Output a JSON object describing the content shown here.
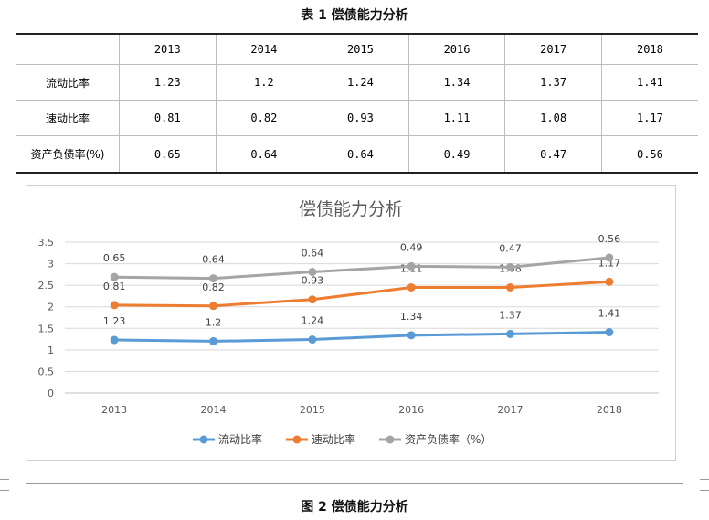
{
  "table": {
    "caption": "表 1 偿债能力分析",
    "headers": [
      "",
      "2013",
      "2014",
      "2015",
      "2016",
      "2017",
      "2018"
    ],
    "rows": [
      {
        "label": "流动比率",
        "values": [
          "1.23",
          "1.2",
          "1.24",
          "1.34",
          "1.37",
          "1.41"
        ]
      },
      {
        "label": "速动比率",
        "values": [
          "0.81",
          "0.82",
          "0.93",
          "1.11",
          "1.08",
          "1.17"
        ]
      },
      {
        "label": "资产负债率(%)",
        "values": [
          "0.65",
          "0.64",
          "0.64",
          "0.49",
          "0.47",
          "0.56"
        ]
      }
    ]
  },
  "figure_caption": "图 2 偿债能力分析",
  "chart_data": {
    "type": "line",
    "title": "偿债能力分析",
    "categories": [
      "2013",
      "2014",
      "2015",
      "2016",
      "2017",
      "2018"
    ],
    "ylim": [
      0,
      3.5
    ],
    "yticks": [
      "0",
      "0.5",
      "1",
      "1.5",
      "2",
      "2.5",
      "3",
      "3.5"
    ],
    "grid": true,
    "legend_position": "bottom",
    "stacked": true,
    "series": [
      {
        "name": "流动比率",
        "color": "#5b9bd5",
        "values": [
          1.23,
          1.2,
          1.24,
          1.34,
          1.37,
          1.41
        ],
        "labels": [
          "1.23",
          "1.2",
          "1.24",
          "1.34",
          "1.37",
          "1.41"
        ]
      },
      {
        "name": "速动比率",
        "color": "#ed7d31",
        "values": [
          0.81,
          0.82,
          0.93,
          1.11,
          1.08,
          1.17
        ],
        "labels": [
          "0.81",
          "0.82",
          "0.93",
          "1.11",
          "1.08",
          "1.17"
        ]
      },
      {
        "name": "资产负债率（%）",
        "color": "#a5a5a5",
        "values": [
          0.65,
          0.64,
          0.64,
          0.49,
          0.47,
          0.56
        ],
        "labels": [
          "0.65",
          "0.64",
          "0.64",
          "0.49",
          "0.47",
          "0.56"
        ]
      }
    ]
  }
}
